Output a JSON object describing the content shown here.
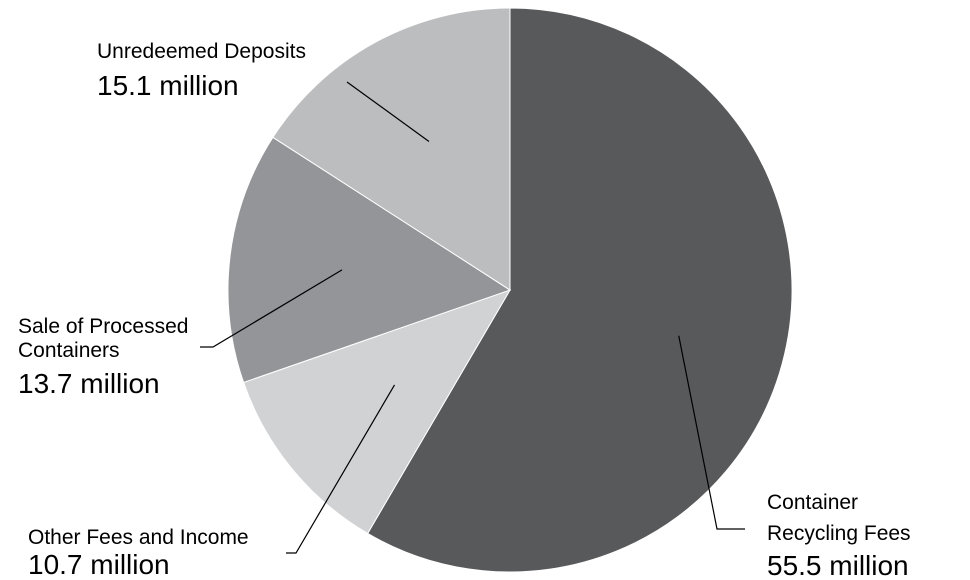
{
  "chart_data": {
    "type": "pie",
    "title": "",
    "slices": [
      {
        "name": "Container Recycling Fees",
        "name_lines": [
          "Container",
          "Recycling Fees"
        ],
        "label": "55.5 million",
        "value": 55.5,
        "color": "#58595b"
      },
      {
        "name": "Other Fees and Income",
        "name_lines": [
          "Other Fees and Income"
        ],
        "label": "10.7 million",
        "value": 10.7,
        "color": "#d1d2d4"
      },
      {
        "name": "Sale of Processed Containers",
        "name_lines": [
          "Sale of Processed",
          "Containers"
        ],
        "label": "13.7 million",
        "value": 13.7,
        "color": "#939598"
      },
      {
        "name": "Unredeemed Deposits",
        "name_lines": [
          "Unredeemed Deposits"
        ],
        "label": "15.1 million",
        "value": 15.1,
        "color": "#bcbdbf"
      }
    ],
    "start_angle": "12 o'clock",
    "direction": "clockwise",
    "legend": "none",
    "labels": "outside with leader lines"
  }
}
